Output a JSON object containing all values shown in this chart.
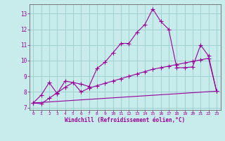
{
  "xlabel": "Windchill (Refroidissement éolien,°C)",
  "bg_color": "#c8ecec",
  "grid_color": "#a0d0d0",
  "line_color": "#990099",
  "spine_color": "#666666",
  "xlim": [
    -0.5,
    23.5
  ],
  "ylim": [
    6.85,
    13.6
  ],
  "yticks": [
    7,
    8,
    9,
    10,
    11,
    12,
    13
  ],
  "xticks": [
    0,
    1,
    2,
    3,
    4,
    5,
    6,
    7,
    8,
    9,
    10,
    11,
    12,
    13,
    14,
    15,
    16,
    17,
    18,
    19,
    20,
    21,
    22,
    23
  ],
  "curve1_x": [
    0,
    1,
    2,
    3,
    4,
    5,
    6,
    7,
    8,
    9,
    10,
    11,
    12,
    13,
    14,
    15,
    16,
    17,
    18,
    19,
    20,
    21,
    22,
    23
  ],
  "curve1_y": [
    7.3,
    7.8,
    8.6,
    7.9,
    8.7,
    8.6,
    8.5,
    8.35,
    9.5,
    9.9,
    10.5,
    11.1,
    11.1,
    11.8,
    12.3,
    13.3,
    12.5,
    12.0,
    9.55,
    9.55,
    9.6,
    11.0,
    10.3,
    8.05
  ],
  "curve2_x": [
    0,
    1,
    2,
    3,
    4,
    5,
    6,
    7,
    8,
    9,
    10,
    11,
    12,
    13,
    14,
    15,
    16,
    17,
    18,
    19,
    20,
    21,
    22,
    23
  ],
  "curve2_y": [
    7.3,
    7.25,
    7.6,
    7.95,
    8.3,
    8.6,
    8.0,
    8.25,
    8.4,
    8.55,
    8.7,
    8.85,
    9.0,
    9.15,
    9.3,
    9.45,
    9.55,
    9.65,
    9.75,
    9.85,
    9.95,
    10.05,
    10.15,
    8.05
  ],
  "curve3_x": [
    0,
    23
  ],
  "curve3_y": [
    7.3,
    8.05
  ]
}
